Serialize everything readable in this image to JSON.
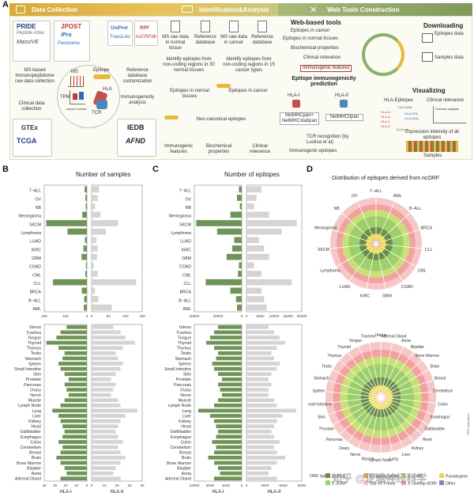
{
  "panelA": {
    "label": "A",
    "headers": {
      "collection": "Data Collection",
      "identification": "Identification&Analysis",
      "webtools": "Web Tools Construction"
    },
    "db_logos": {
      "pride": "PRIDE",
      "peptide_atlas": "Peptide Atlas",
      "massive": "MassIVE",
      "jpost": "JPOST",
      "ipro": "iPro",
      "panorama": "Panorama",
      "uniprot": "UniProt",
      "transline": "TransLinc",
      "rpf": "RPF",
      "nuorfdb": "nuORFdb",
      "gtex": "GTEx",
      "tcga": "TCGA",
      "iedb": "IEDB",
      "afnd": "AFND"
    },
    "ms_label": "MS",
    "ms_desc": "MS-based immunopeptidome raw data collection",
    "ref_desc": "Reference database customization",
    "epitope_label": "Epitope",
    "hla_label": "HLA",
    "tcr_label": "TCR",
    "tpm_label": "TPM",
    "cancer_normal_label": "cancer normal",
    "clinical_desc": "Clinical data collection",
    "immuno_desc": "Immunogenicity analysis",
    "id_items": {
      "ms_normal": "MS raw data in normal tissue",
      "ref1": "Reference database",
      "ms_cancer": "MS raw data in cancer",
      "ref2": "Reference database",
      "identify_normal": "Identify epitopes from non-coding regions in 30 normal tissues",
      "identify_cancer": "Identify epitopes from non-coding regions in 15 cancer types",
      "epi_normal": "Epitopes in normal tissues",
      "epi_cancer": "Epitopes in cancer",
      "noncanonical": "Non-canonical epitopes",
      "immunogenic": "Immunogenic features",
      "biochem": "Biochemical properties",
      "clinical": "Clinical relevance"
    },
    "web": {
      "title": "Web-based tools",
      "items": [
        "Epitopes in cancer",
        "Epitopes in normal tissues",
        "Biochemical properties",
        "Clinical relevance",
        "Immunogenic features"
      ],
      "downloading": "Downloading",
      "epitopes_data": "Epitopes data",
      "samples_data": "Samples data",
      "pred_title": "Epitope immunogenicity prediction",
      "hla1": "HLA-I",
      "hla2": "HLA-II",
      "netmhc1": "NetMHCpan+ NetMHCstabpan",
      "netmhc2": "NetMHCIIpan",
      "tcr": "TCR recognition (by Lucksa et al)",
      "immunogenic_epitopes": "Immunogenic epitopes",
      "visualizing": "Visualizing",
      "hla_epitopes": "HLA-Epitopes",
      "clinical_rel": "Clinical relevance",
      "expr": "Expression intensity of all epitopes",
      "samples": "Samples",
      "survival": "Survival analysis",
      "hla_nodes": [
        "HLA-DRB",
        "HLA-A",
        "HLA-B",
        "HLA-C",
        "HLA-DPA",
        "HLA-DQA",
        "HLA-G",
        "Epitopes"
      ]
    }
  },
  "panelB": {
    "label": "B",
    "title": "Number of  samples",
    "xlabel_left": "HLA-I",
    "xlabel_right": "HLA-II",
    "cancer_ticks_left": [
      "200",
      "100",
      "0"
    ],
    "cancer_ticks_right": [
      "0",
      "50",
      "100",
      "150"
    ],
    "normal_ticks_left": [
      "40",
      "30",
      "20",
      "10",
      "0"
    ],
    "normal_ticks_right": [
      "0",
      "10",
      "20",
      "30",
      "40"
    ]
  },
  "panelC": {
    "label": "C",
    "title": "Number of  epitopes",
    "xlabel_left": "HLA-I",
    "xlabel_right": "HLA-II",
    "cancer_ticks_left": [
      "40000",
      "20000",
      "0"
    ],
    "cancer_ticks_right": [
      "0",
      "5000",
      "10000",
      "15000",
      "20000"
    ],
    "normal_ticks_left": [
      "12000",
      "8000",
      "4000",
      "0"
    ],
    "normal_ticks_right": [
      "0",
      "3000",
      "6000",
      "9000"
    ]
  },
  "panelD": {
    "label": "D",
    "title": "Distribution of epitopes derived from ncORF",
    "top_labels": [
      "T−ALL",
      "AML",
      "B−ALL",
      "BRCA",
      "CLL",
      "CML",
      "COAD",
      "GBM",
      "KIRC",
      "LUAD",
      "Lymphoma",
      "SKCM",
      "Meningioma",
      "NB",
      "OV"
    ],
    "bottom_labels": [
      "Uterus",
      "Adrenal Gland",
      "Aorta",
      "Bladder",
      "Bone Marrow",
      "Brain",
      "Breast",
      "Cerebellum",
      "Colon",
      "Esophagus",
      "Gallbladder",
      "Heart",
      "Kidney",
      "Liver",
      "Lung",
      "Lymph Node",
      "Muscle",
      "Nerve",
      "Ovary",
      "Pancreas",
      "Prostate",
      "Skin",
      "Small Intestine",
      "Spleen",
      "Stomach",
      "Testis",
      "Thymus",
      "Thyroid",
      "Tongue",
      "Trachea"
    ],
    "legend_title": "ORF type",
    "legend": [
      {
        "name": "lncRNA",
        "color": "#6a8f4a"
      },
      {
        "name": "5' Overlap uORF",
        "color": "#f2a65a"
      },
      {
        "name": "3' uORF",
        "color": "#c9e07a"
      },
      {
        "name": "Pseudogene",
        "color": "#e8d84a"
      },
      {
        "name": "5' uORF",
        "color": "#9ccf6a"
      },
      {
        "name": "Out−of−Frame",
        "color": "#f6c7c7"
      },
      {
        "name": "3' Overlap dORF",
        "color": "#f3a0a0"
      },
      {
        "name": "Other",
        "color": "#8b7fc9"
      }
    ],
    "ring_axis": "ORF proportion"
  },
  "watermark": "知乎 @逻辑神经科学",
  "chart_data": [
    {
      "type": "bar",
      "title": "Number of  samples",
      "categories": [
        "T−ALL",
        "OV",
        "NB",
        "Meningioma",
        "SKCM",
        "Lymphoma",
        "LUAD",
        "KIRC",
        "GBM",
        "COAD",
        "CML",
        "CLL",
        "BRCA",
        "B−ALL",
        "AML"
      ],
      "series": [
        {
          "name": "HLA-I",
          "values": [
            12,
            8,
            6,
            24,
            210,
            100,
            10,
            18,
            28,
            5,
            8,
            175,
            26,
            14,
            16
          ]
        },
        {
          "name": "HLA-II",
          "values": [
            22,
            18,
            10,
            26,
            78,
            42,
            14,
            18,
            16,
            6,
            18,
            132,
            10,
            20,
            60
          ]
        }
      ],
      "xlabel": "",
      "ylabel": ""
    },
    {
      "type": "bar",
      "categories": [
        "Uterus",
        "Trachea",
        "Tongue",
        "Thyroid",
        "Thymus",
        "Testis",
        "Stomach",
        "Spleen",
        "Small Intestine",
        "Skin",
        "Prostate",
        "Pancreas",
        "Ovary",
        "Nerve",
        "Muscle",
        "Lymph Node",
        "Lung",
        "Liver",
        "Kidney",
        "Heart",
        "Gallbladder",
        "Esophagus",
        "Colon",
        "Cerebellum",
        "Breast",
        "Brain",
        "Bone Marrow",
        "Bladder",
        "Aorta",
        "Adrenal Gland"
      ],
      "series": [
        {
          "name": "HLA-I",
          "values": [
            20,
            26,
            30,
            40,
            28,
            22,
            24,
            28,
            26,
            22,
            18,
            22,
            20,
            18,
            22,
            26,
            34,
            28,
            26,
            24,
            22,
            24,
            28,
            24,
            26,
            30,
            26,
            22,
            20,
            26
          ]
        },
        {
          "name": "HLA-II",
          "values": [
            18,
            24,
            28,
            36,
            26,
            20,
            22,
            26,
            24,
            20,
            16,
            20,
            18,
            16,
            22,
            24,
            38,
            28,
            24,
            22,
            20,
            22,
            26,
            22,
            24,
            28,
            24,
            20,
            18,
            24
          ]
        }
      ],
      "xlabel": "HLA-I / HLA-II",
      "ylabel": ""
    },
    {
      "type": "bar",
      "title": "Number of  epitopes",
      "categories": [
        "T−ALL",
        "OV",
        "NB",
        "Meningioma",
        "SKCM",
        "Lymphoma",
        "LUAD",
        "KIRC",
        "GBM",
        "COAD",
        "CML",
        "CLL",
        "BRCA",
        "B−ALL",
        "AML"
      ],
      "series": [
        {
          "name": "HLA-I",
          "values": [
            3000,
            5000,
            2000,
            12000,
            48000,
            26000,
            8000,
            10000,
            16000,
            3000,
            4000,
            38000,
            12000,
            6000,
            5000
          ]
        },
        {
          "name": "HLA-II",
          "values": [
            6000,
            4000,
            3000,
            9000,
            20000,
            14000,
            5000,
            7000,
            9000,
            3000,
            6000,
            18000,
            6000,
            7000,
            8000
          ]
        }
      ],
      "xlabel": "",
      "ylabel": ""
    },
    {
      "type": "bar",
      "categories": [
        "Uterus",
        "Trachea",
        "Tongue",
        "Thyroid",
        "Thymus",
        "Testis",
        "Stomach",
        "Spleen",
        "Small Intestine",
        "Skin",
        "Prostate",
        "Pancreas",
        "Ovary",
        "Nerve",
        "Muscle",
        "Lymph Node",
        "Lung",
        "Liver",
        "Kidney",
        "Heart",
        "Gallbladder",
        "Esophagus",
        "Colon",
        "Cerebellum",
        "Breast",
        "Brain",
        "Bone Marrow",
        "Bladder",
        "Aorta",
        "Adrenal Gland"
      ],
      "series": [
        {
          "name": "HLA-I",
          "values": [
            6000,
            7000,
            8000,
            9000,
            7000,
            6000,
            6500,
            7500,
            7000,
            6000,
            5000,
            6000,
            5500,
            5000,
            6000,
            7000,
            11000,
            8000,
            7000,
            6500,
            6000,
            6500,
            7500,
            6500,
            7000,
            8500,
            7000,
            6000,
            5500,
            7000
          ]
        },
        {
          "name": "HLA-II",
          "values": [
            4000,
            5000,
            6000,
            7000,
            5500,
            4500,
            5000,
            6000,
            5500,
            4500,
            4000,
            4500,
            4000,
            4000,
            5000,
            5500,
            9000,
            6500,
            5500,
            5000,
            4500,
            5000,
            6000,
            5000,
            5500,
            7000,
            5500,
            4500,
            4000,
            5500
          ]
        }
      ],
      "xlabel": "HLA-I / HLA-II",
      "ylabel": ""
    }
  ]
}
